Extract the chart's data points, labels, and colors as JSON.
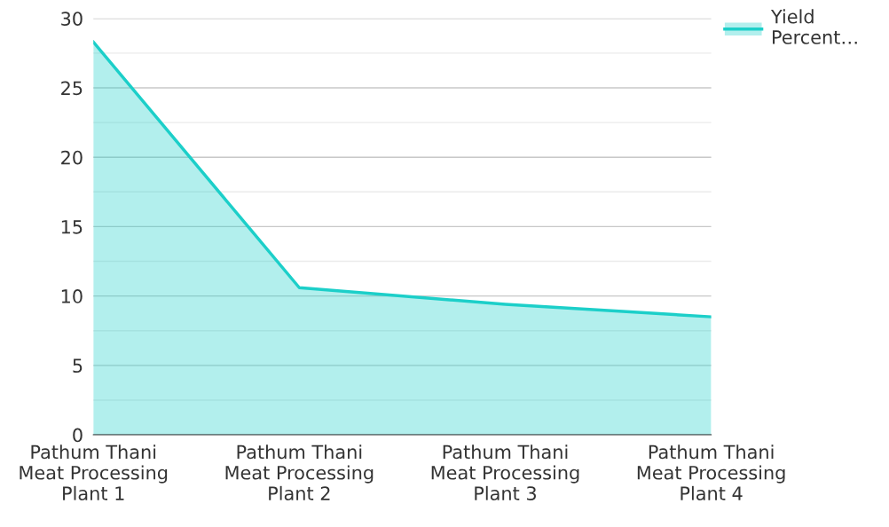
{
  "chart_data": {
    "type": "area",
    "categories": [
      "Pathum Thani\nMeat Processing\nPlant 1",
      "Pathum Thani\nMeat Processing\nPlant 2",
      "Pathum Thani\nMeat Processing\nPlant 3",
      "Pathum Thani\nMeat Processing\nPlant 4"
    ],
    "series": [
      {
        "name": "Yield\nPercent…",
        "color": "#1ccfc9",
        "values": [
          28.3,
          10.6,
          9.4,
          8.5
        ]
      }
    ],
    "ylim": [
      0,
      30
    ],
    "yticks": [
      0,
      {
        "value": 2.5,
        "label": null
      },
      5,
      {
        "value": 7.5,
        "label": null
      },
      10,
      {
        "value": 12.5,
        "label": null
      },
      15,
      {
        "value": 17.5,
        "label": null
      },
      20,
      {
        "value": 22.5,
        "label": null
      },
      25,
      {
        "value": 27.5,
        "label": null
      },
      30
    ],
    "grid": "y",
    "legend": "top right"
  }
}
